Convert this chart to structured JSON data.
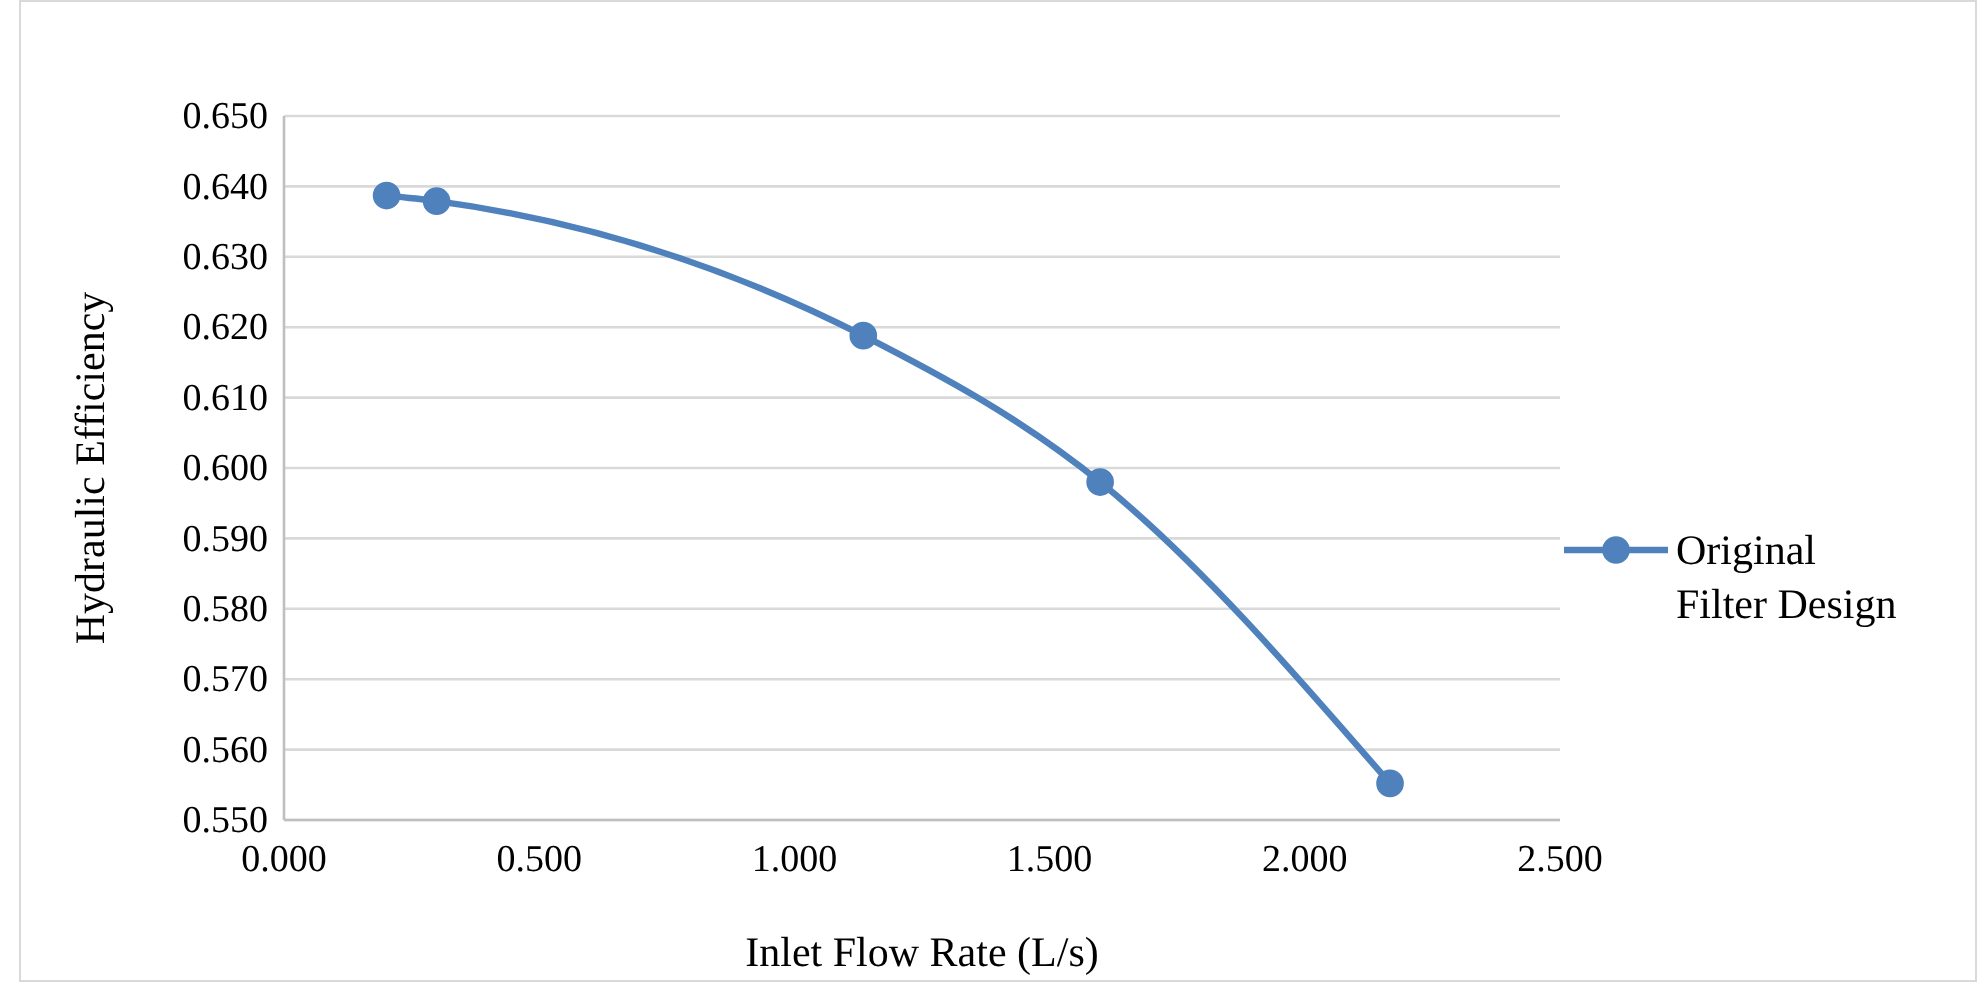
{
  "chart_data": {
    "type": "line",
    "xlabel": "Inlet Flow Rate (L/s)",
    "ylabel": "Hydraulic Efficiency",
    "x": [
      0.201,
      0.299,
      1.135,
      1.599,
      2.167
    ],
    "series": [
      {
        "name": "Original Filter Design",
        "color": "#4f81bd",
        "values": [
          0.6387,
          0.6379,
          0.6188,
          0.598,
          0.5552
        ]
      }
    ],
    "xlim": [
      0,
      2.5
    ],
    "xticks": [
      {
        "value": 0,
        "label": "0.000"
      },
      {
        "value": 0.5,
        "label": "0.500"
      },
      {
        "value": 1,
        "label": "1.000"
      },
      {
        "value": 1.5,
        "label": "1.500"
      },
      {
        "value": 2,
        "label": "2.000"
      },
      {
        "value": 2.5,
        "label": "2.500"
      }
    ],
    "ylim": [
      0.55,
      0.65
    ],
    "yticks": [
      {
        "value": 0.55,
        "label": "0.550"
      },
      {
        "value": 0.56,
        "label": "0.560"
      },
      {
        "value": 0.57,
        "label": "0.570"
      },
      {
        "value": 0.58,
        "label": "0.580"
      },
      {
        "value": 0.59,
        "label": "0.590"
      },
      {
        "value": 0.6,
        "label": "0.600"
      },
      {
        "value": 0.61,
        "label": "0.610"
      },
      {
        "value": 0.62,
        "label": "0.620"
      },
      {
        "value": 0.63,
        "label": "0.630"
      },
      {
        "value": 0.64,
        "label": "0.640"
      },
      {
        "value": 0.65,
        "label": "0.650"
      }
    ],
    "grid": "y",
    "legend": "right",
    "marker": "circle",
    "line_style": "solid"
  }
}
